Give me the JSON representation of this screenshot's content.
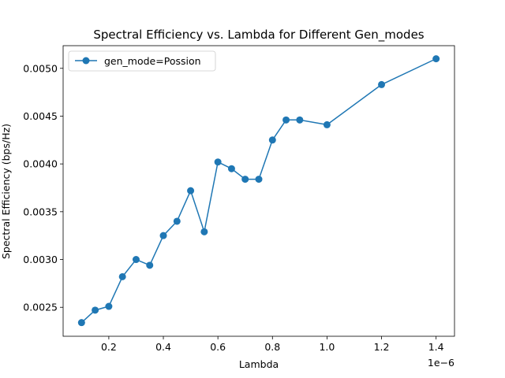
{
  "chart_data": {
    "type": "line",
    "title": "Spectral Efficiency vs. Lambda for Different Gen_modes",
    "xlabel": "Lambda",
    "ylabel": "Spectral Efficiency (bps/Hz)",
    "x_offset_label": "1e−6",
    "xlim": [
      0.0325,
      1.4675
    ],
    "ylim": [
      0.002197,
      0.005237
    ],
    "x_ticks": [
      {
        "value": 0.2,
        "label": "0.2"
      },
      {
        "value": 0.4,
        "label": "0.4"
      },
      {
        "value": 0.6,
        "label": "0.6"
      },
      {
        "value": 0.8,
        "label": "0.8"
      },
      {
        "value": 1.0,
        "label": "1.0"
      },
      {
        "value": 1.2,
        "label": "1.2"
      },
      {
        "value": 1.4,
        "label": "1.4"
      }
    ],
    "y_ticks": [
      {
        "value": 0.0025,
        "label": "0.0025"
      },
      {
        "value": 0.003,
        "label": "0.0030"
      },
      {
        "value": 0.0035,
        "label": "0.0035"
      },
      {
        "value": 0.004,
        "label": "0.0040"
      },
      {
        "value": 0.0045,
        "label": "0.0045"
      },
      {
        "value": 0.005,
        "label": "0.0050"
      }
    ],
    "grid": false,
    "legend_position": "top-left",
    "series": [
      {
        "name": "gen_mode=Possion",
        "color": "#1f77b4",
        "marker": "circle",
        "x": [
          0.1,
          0.15,
          0.2,
          0.25,
          0.3,
          0.35,
          0.4,
          0.45,
          0.5,
          0.55,
          0.6,
          0.65,
          0.7,
          0.75,
          0.8,
          0.85,
          0.9,
          1.0,
          1.2,
          1.4
        ],
        "y": [
          0.00234,
          0.00247,
          0.00251,
          0.00282,
          0.003,
          0.00294,
          0.00325,
          0.0034,
          0.00372,
          0.00329,
          0.00402,
          0.00395,
          0.00384,
          0.00384,
          0.00425,
          0.00446,
          0.00446,
          0.00441,
          0.00483,
          0.0051
        ]
      }
    ]
  }
}
